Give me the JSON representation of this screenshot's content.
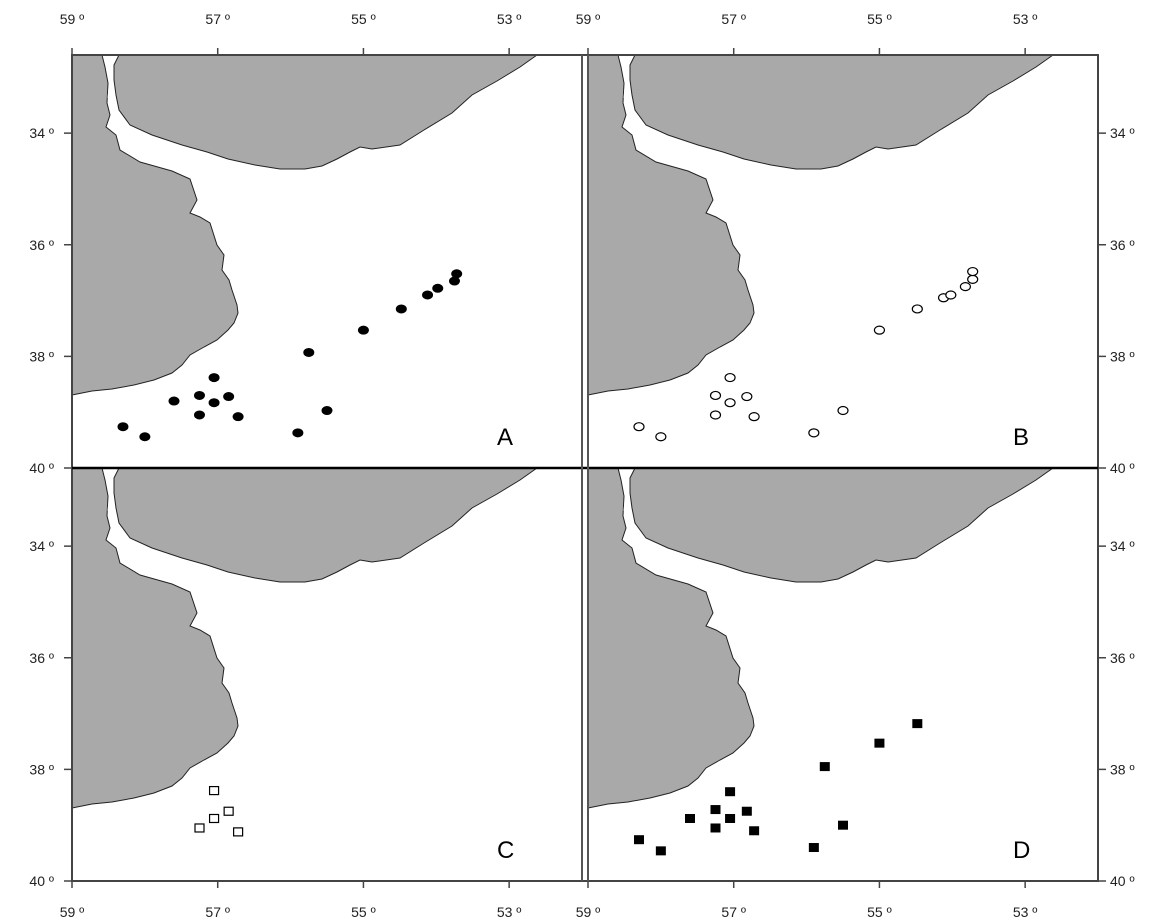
{
  "figure": {
    "x_ticks": [
      "59 º",
      "57 º",
      "55 º",
      "53 º"
    ],
    "y_ticks": [
      "34 º",
      "36 º",
      "38 º",
      "40 º"
    ],
    "colors": {
      "land": "#a9a9a9",
      "sea": "#ffffff",
      "frame": "#444444",
      "marker": "#000000"
    }
  },
  "panels": [
    {
      "letter": "A",
      "marker": "filled-circle",
      "stations": [
        {
          "lon": -58.3,
          "lat": -39.26
        },
        {
          "lon": -58.0,
          "lat": -39.44
        },
        {
          "lon": -57.6,
          "lat": -38.8
        },
        {
          "lon": -57.25,
          "lat": -38.7
        },
        {
          "lon": -57.25,
          "lat": -39.05
        },
        {
          "lon": -57.05,
          "lat": -38.38
        },
        {
          "lon": -57.05,
          "lat": -38.83
        },
        {
          "lon": -56.85,
          "lat": -38.72
        },
        {
          "lon": -56.72,
          "lat": -39.08
        },
        {
          "lon": -55.9,
          "lat": -39.37
        },
        {
          "lon": -55.75,
          "lat": -37.93
        },
        {
          "lon": -55.5,
          "lat": -38.97
        },
        {
          "lon": -55.0,
          "lat": -37.53
        },
        {
          "lon": -54.48,
          "lat": -37.15
        },
        {
          "lon": -54.12,
          "lat": -36.9
        },
        {
          "lon": -53.98,
          "lat": -36.78
        },
        {
          "lon": -53.75,
          "lat": -36.65
        },
        {
          "lon": -53.72,
          "lat": -36.52
        }
      ]
    },
    {
      "letter": "B",
      "marker": "open-circle",
      "stations": [
        {
          "lon": -58.3,
          "lat": -39.26
        },
        {
          "lon": -58.0,
          "lat": -39.44
        },
        {
          "lon": -57.25,
          "lat": -38.7
        },
        {
          "lon": -57.25,
          "lat": -39.05
        },
        {
          "lon": -57.05,
          "lat": -38.38
        },
        {
          "lon": -57.05,
          "lat": -38.83
        },
        {
          "lon": -56.82,
          "lat": -38.72
        },
        {
          "lon": -56.72,
          "lat": -39.08
        },
        {
          "lon": -55.9,
          "lat": -39.37
        },
        {
          "lon": -55.5,
          "lat": -38.97
        },
        {
          "lon": -55.0,
          "lat": -37.53
        },
        {
          "lon": -54.48,
          "lat": -37.15
        },
        {
          "lon": -54.12,
          "lat": -36.95
        },
        {
          "lon": -54.02,
          "lat": -36.9
        },
        {
          "lon": -53.82,
          "lat": -36.75
        },
        {
          "lon": -53.72,
          "lat": -36.62
        },
        {
          "lon": -53.72,
          "lat": -36.48
        }
      ]
    },
    {
      "letter": "C",
      "marker": "open-square",
      "stations": [
        {
          "lon": -57.05,
          "lat": -38.38
        },
        {
          "lon": -57.05,
          "lat": -38.88
        },
        {
          "lon": -56.85,
          "lat": -38.75
        },
        {
          "lon": -57.25,
          "lat": -39.05
        },
        {
          "lon": -56.72,
          "lat": -39.12
        }
      ]
    },
    {
      "letter": "D",
      "marker": "filled-square",
      "stations": [
        {
          "lon": -58.3,
          "lat": -39.26
        },
        {
          "lon": -58.0,
          "lat": -39.46
        },
        {
          "lon": -57.6,
          "lat": -38.88
        },
        {
          "lon": -57.25,
          "lat": -38.72
        },
        {
          "lon": -57.25,
          "lat": -39.05
        },
        {
          "lon": -57.05,
          "lat": -38.4
        },
        {
          "lon": -57.05,
          "lat": -38.88
        },
        {
          "lon": -56.82,
          "lat": -38.75
        },
        {
          "lon": -56.72,
          "lat": -39.1
        },
        {
          "lon": -55.9,
          "lat": -39.4
        },
        {
          "lon": -55.75,
          "lat": -37.95
        },
        {
          "lon": -55.5,
          "lat": -39.0
        },
        {
          "lon": -55.0,
          "lat": -37.53
        },
        {
          "lon": -54.48,
          "lat": -37.18
        }
      ]
    }
  ]
}
